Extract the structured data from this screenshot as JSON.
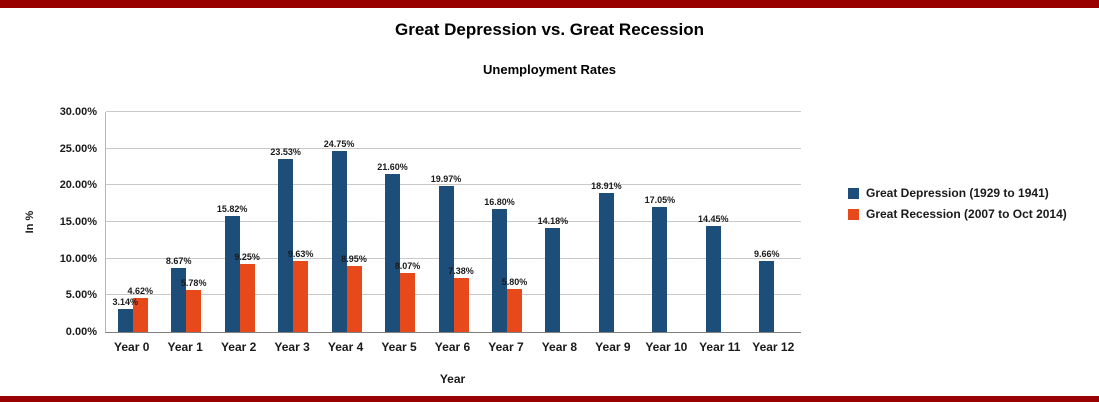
{
  "frame": {
    "color": "#990000"
  },
  "chart_data": {
    "type": "bar",
    "title": "Great Depression vs. Great Recession",
    "subtitle": "Unemployment Rates",
    "xlabel": "Year",
    "ylabel": "In %",
    "ylim": [
      0,
      30
    ],
    "ytick_step": 5,
    "ytick_labels": [
      "0.00%",
      "5.00%",
      "10.00%",
      "15.00%",
      "20.00%",
      "25.00%",
      "30.00%"
    ],
    "grid": true,
    "legend_position": "right",
    "categories": [
      "Year 0",
      "Year 1",
      "Year 2",
      "Year 3",
      "Year 4",
      "Year 5",
      "Year 6",
      "Year 7",
      "Year 8",
      "Year 9",
      "Year 10",
      "Year 11",
      "Year 12"
    ],
    "series": [
      {
        "name": "Great Depression (1929 to 1941)",
        "color": "#1d4e79",
        "values": [
          3.14,
          8.67,
          15.82,
          23.53,
          24.75,
          21.6,
          19.97,
          16.8,
          14.18,
          18.91,
          17.05,
          14.45,
          9.66
        ],
        "labels": [
          "3.14%",
          "8.67%",
          "15.82%",
          "23.53%",
          "24.75%",
          "21.60%",
          "19.97%",
          "16.80%",
          "14.18%",
          "18.91%",
          "17.05%",
          "14.45%",
          "9.66%"
        ]
      },
      {
        "name": "Great Recession (2007 to Oct 2014)",
        "color": "#e8491b",
        "values": [
          4.62,
          5.78,
          9.25,
          9.63,
          8.95,
          8.07,
          7.38,
          5.8,
          null,
          null,
          null,
          null,
          null
        ],
        "labels": [
          "4.62%",
          "5.78%",
          "9.25%",
          "9.63%",
          "8.95%",
          "8.07%",
          "7.38%",
          "5.80%",
          "",
          "",
          "",
          "",
          ""
        ]
      }
    ]
  }
}
